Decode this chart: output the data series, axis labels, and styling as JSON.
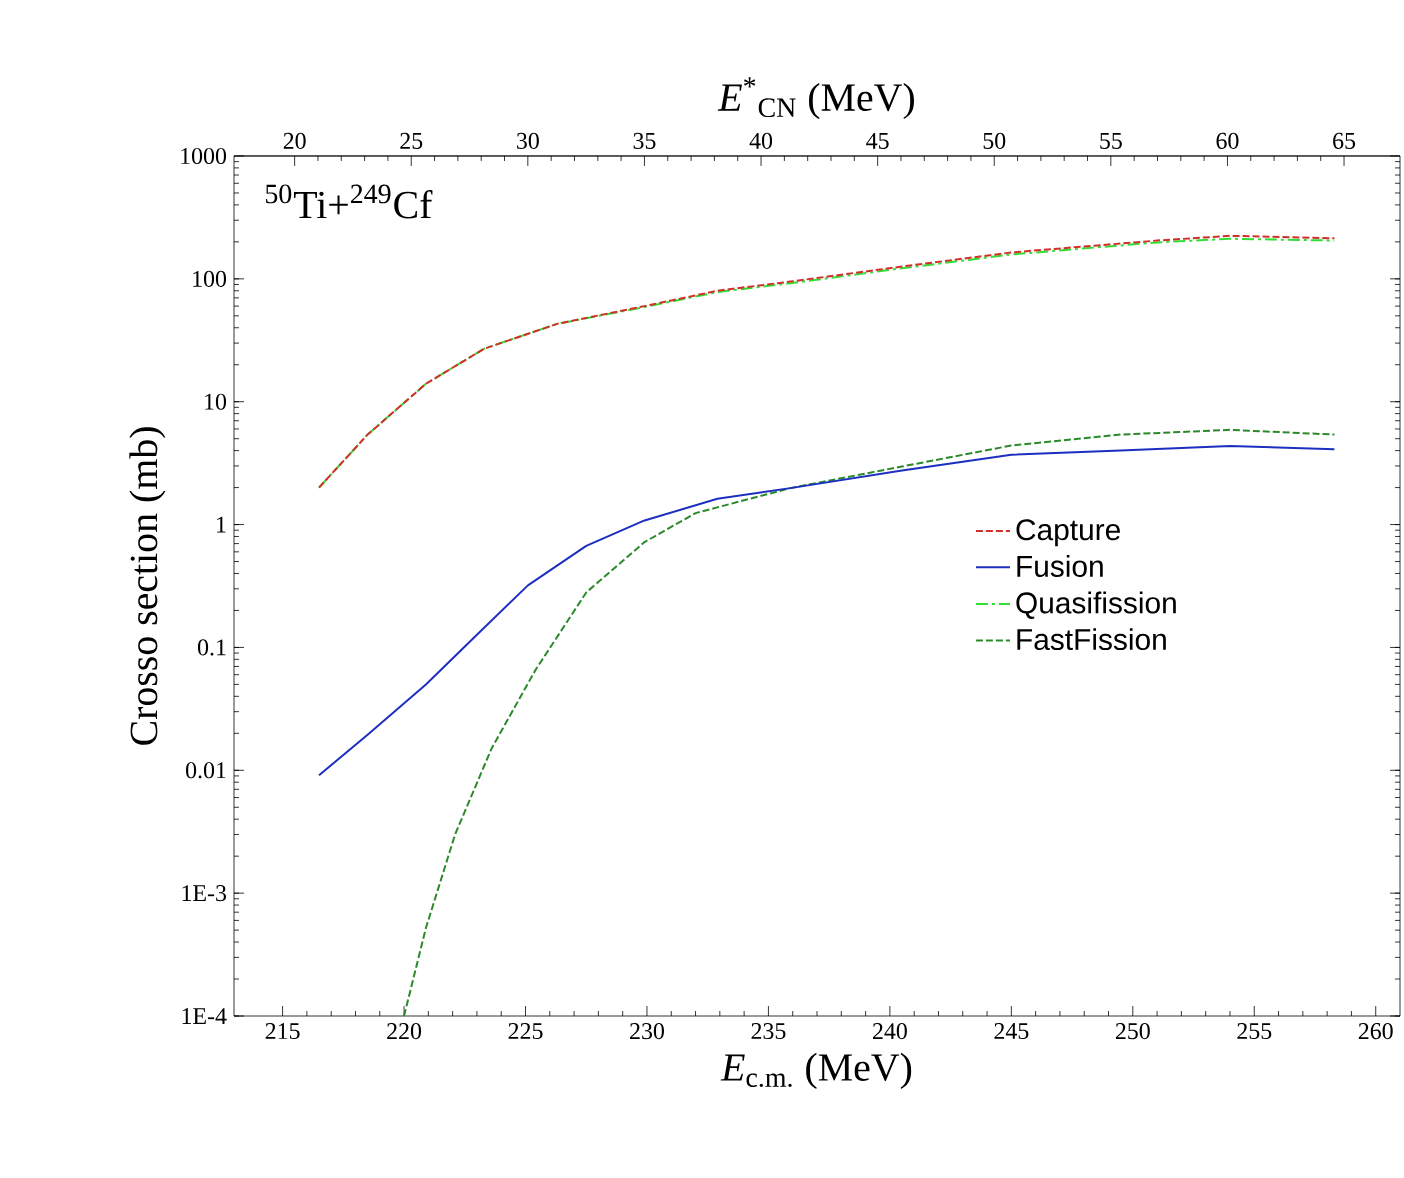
{
  "chart_data": {
    "type": "line",
    "xlabel": "*E*$_{c.m.}$ (MeV)",
    "x2label": "*E*$^{*}$$_{CN}$ (MeV)",
    "ylabel": "Crosso section (mb)",
    "annotations": [
      "$^{50}$Ti+$^{249}$Cf"
    ],
    "log": "y",
    "legend": "right",
    "grid": false,
    "xlim": [
      213,
      261
    ],
    "xticks": [
      215,
      220,
      225,
      230,
      235,
      240,
      245,
      250,
      255,
      260
    ],
    "x2lim": [
      17.4,
      67.4
    ],
    "x2ticks": [
      20,
      25,
      30,
      35,
      40,
      45,
      50,
      55,
      60,
      65
    ],
    "ylim": [
      0.0001,
      1000
    ],
    "yticks": [
      {
        "value": 0.0001,
        "label": "1E-4"
      },
      {
        "value": 0.001,
        "label": "1E-3"
      },
      0.01,
      0.1,
      1,
      10,
      100,
      1000
    ],
    "series": [
      {
        "name": "Capture",
        "color": "#d0302a",
        "line_style": "dashed",
        "x": [
          216.5,
          218.5,
          220.9,
          223.3,
          226.3,
          229.9,
          232.9,
          235.9,
          240.5,
          245.0,
          251.0,
          254.0,
          258.3
        ],
        "values": [
          2.0,
          5.4,
          14,
          27,
          43,
          60,
          80,
          95,
          126,
          164,
          205,
          224,
          214
        ]
      },
      {
        "name": "Fusion",
        "color": "#1c2fc0",
        "line_style": "solid",
        "x": [
          216.5,
          218.5,
          220.9,
          223.0,
          225.1,
          227.5,
          229.9,
          232.9,
          235.9,
          240.5,
          245.0,
          249.5,
          254.0,
          258.3
        ],
        "values": [
          0.0091,
          0.0195,
          0.05,
          0.127,
          0.32,
          0.67,
          1.08,
          1.62,
          1.98,
          2.76,
          3.7,
          4.0,
          4.37,
          4.1
        ]
      },
      {
        "name": "Quasifission",
        "color": "#33dd33",
        "line_style": "dashdot",
        "x": [
          216.5,
          218.5,
          220.9,
          223.3,
          226.3,
          229.9,
          232.9,
          235.9,
          240.5,
          245.0,
          251.0,
          254.0,
          258.3
        ],
        "values": [
          2.0,
          5.4,
          14,
          27,
          43,
          59,
          78,
          92,
          122,
          158,
          198,
          212,
          205
        ]
      },
      {
        "name": "FastFission",
        "color": "#2a8a2a",
        "line_style": "dashed",
        "x": [
          220.0,
          220.9,
          222.1,
          223.6,
          225.4,
          227.5,
          229.9,
          232.0,
          235.9,
          240.5,
          245.0,
          249.5,
          254.0,
          258.3
        ],
        "values": [
          0.0001,
          0.00052,
          0.003,
          0.015,
          0.065,
          0.28,
          0.72,
          1.24,
          1.98,
          2.97,
          4.4,
          5.4,
          5.9,
          5.4
        ]
      }
    ]
  }
}
